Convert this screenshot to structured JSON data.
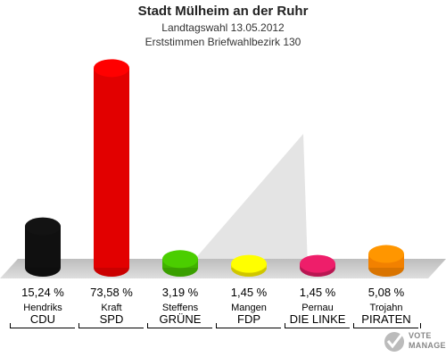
{
  "chart_data": {
    "type": "bar",
    "title": "Stadt Mülheim an der Ruhr",
    "subtitle1": "Landtagswahl 13.05.2012",
    "subtitle2": "Erststimmen Briefwahlbezirk 130",
    "categories": [
      "CDU",
      "SPD",
      "GRÜNE",
      "FDP",
      "DIE LINKE",
      "PIRATEN"
    ],
    "candidates": [
      "Hendriks",
      "Kraft",
      "Steffens",
      "Mangen",
      "Pernau",
      "Trojahn"
    ],
    "values": [
      15.24,
      73.58,
      3.19,
      1.45,
      1.45,
      5.08
    ],
    "value_labels": [
      "15,24 %",
      "73,58 %",
      "3,19 %",
      "1,45 %",
      "1,45 %",
      "5,08 %"
    ],
    "colors": [
      "#111111",
      "#ee0000",
      "#44bb00",
      "#f5e900",
      "#d81b60",
      "#ff8800"
    ],
    "ylim": [
      0,
      75
    ]
  },
  "logo": {
    "line1": "VOTE",
    "line2": "MANAGER"
  }
}
